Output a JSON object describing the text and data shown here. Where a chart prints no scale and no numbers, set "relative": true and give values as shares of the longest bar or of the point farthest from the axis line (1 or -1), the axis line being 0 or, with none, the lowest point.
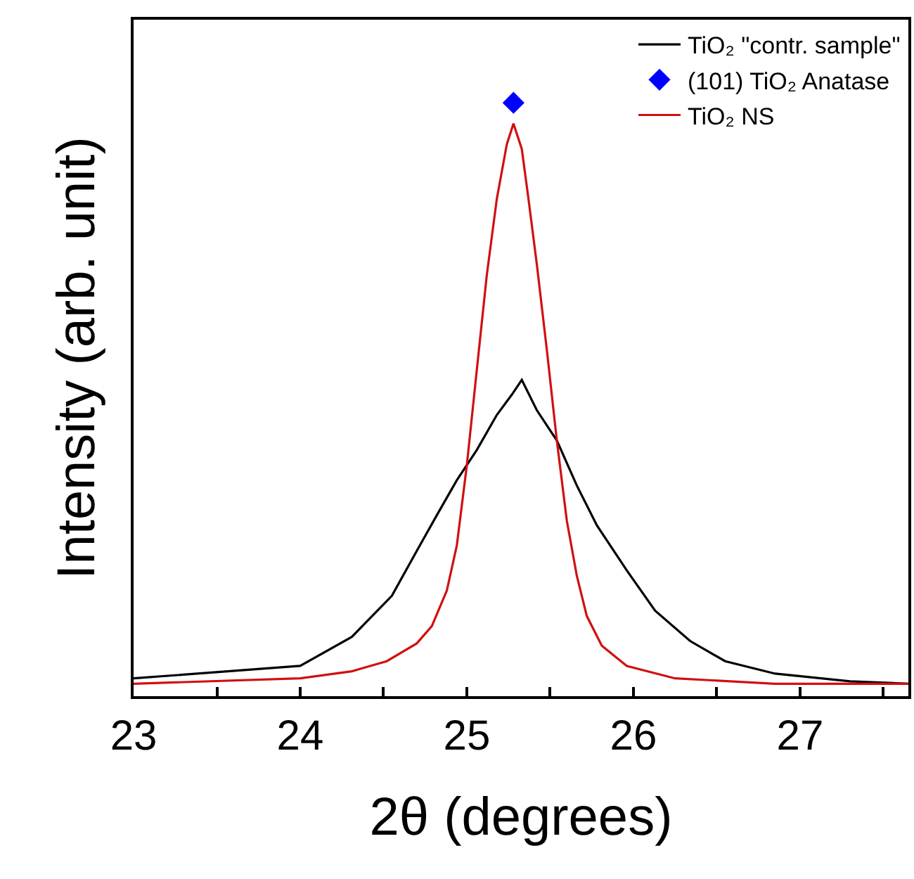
{
  "chart_data": {
    "type": "line",
    "relative": true,
    "xlabel": "2θ (degrees)",
    "ylabel": "Intensity (arb. unit)",
    "xlim": [
      23,
      27.65
    ],
    "xticks": [
      23,
      {
        "value": 23.5,
        "label": null
      },
      24,
      {
        "value": 24.5,
        "label": null
      },
      25,
      {
        "value": 25.5,
        "label": null
      },
      26,
      {
        "value": 26.5,
        "label": null
      },
      27,
      {
        "value": 27.5,
        "label": null
      }
    ],
    "grid": false,
    "legend": "top right",
    "marker": "none",
    "line_style": "solid",
    "series": [
      {
        "name": "TiO₂ \"contr. sample\"",
        "color": "#000000",
        "x": [
          23.0,
          24.0,
          24.31,
          24.55,
          24.7,
          24.82,
          24.94,
          25.06,
          25.18,
          25.27,
          25.33,
          25.42,
          25.54,
          25.66,
          25.78,
          25.96,
          26.13,
          26.34,
          26.55,
          26.85,
          27.3,
          27.65
        ],
        "values": [
          0.03,
          0.051,
          0.1,
          0.169,
          0.245,
          0.305,
          0.364,
          0.415,
          0.474,
          0.508,
          0.533,
          0.482,
          0.431,
          0.355,
          0.288,
          0.212,
          0.144,
          0.093,
          0.059,
          0.038,
          0.025,
          0.021
        ]
      },
      {
        "name": "(101) TiO₂ Anatase",
        "type": "scatter",
        "marker": "diamond",
        "color": "#0000ff",
        "x": [
          25.28
        ],
        "values": [
          1.0
        ]
      },
      {
        "name": "TiO₂ NS",
        "color": "#d01010",
        "x": [
          23.0,
          24.0,
          24.31,
          24.52,
          24.7,
          24.79,
          24.88,
          24.94,
          25.0,
          25.06,
          25.12,
          25.18,
          25.24,
          25.28,
          25.33,
          25.37,
          25.42,
          25.48,
          25.54,
          25.6,
          25.66,
          25.72,
          25.81,
          25.96,
          26.25,
          26.85,
          27.65
        ],
        "values": [
          0.021,
          0.03,
          0.042,
          0.059,
          0.089,
          0.118,
          0.178,
          0.254,
          0.389,
          0.55,
          0.71,
          0.838,
          0.93,
          0.965,
          0.922,
          0.838,
          0.728,
          0.584,
          0.431,
          0.296,
          0.203,
          0.135,
          0.085,
          0.051,
          0.03,
          0.021,
          0.021
        ]
      }
    ]
  }
}
